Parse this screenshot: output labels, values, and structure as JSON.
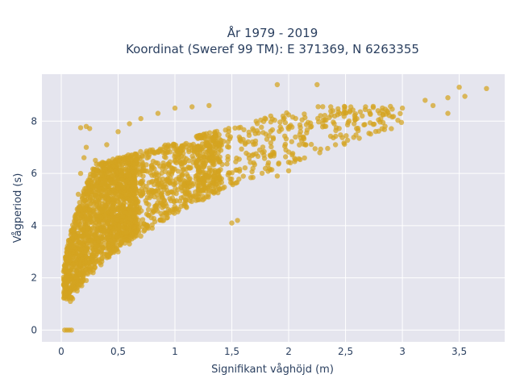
{
  "chart_data": {
    "type": "scatter",
    "title_line1": "År 1979 - 2019",
    "title_line2": "Koordinat (Sweref 99 TM): E 371369, N 6263355",
    "xlabel": "Signifikant våghöjd (m)",
    "ylabel": "Vågperiod (s)",
    "xlim": [
      -0.17,
      3.9
    ],
    "ylim": [
      -0.45,
      9.8
    ],
    "xticks": [
      0,
      0.5,
      1,
      1.5,
      2,
      2.5,
      3,
      3.5
    ],
    "xtick_labels": [
      "0",
      "0,5",
      "1",
      "1,5",
      "2",
      "2,5",
      "3",
      "3,5"
    ],
    "yticks": [
      0,
      2,
      4,
      6,
      8
    ],
    "ytick_labels": [
      "0",
      "2",
      "4",
      "6",
      "8"
    ],
    "grid": true,
    "marker_color": "#d4a420",
    "plot_bg": "#e5e5ee",
    "points": [
      [
        0.03,
        0.0
      ],
      [
        0.05,
        0.0
      ],
      [
        0.07,
        0.0
      ],
      [
        0.09,
        0.0
      ],
      [
        0.03,
        1.3
      ],
      [
        0.05,
        1.6
      ],
      [
        0.07,
        2.0
      ],
      [
        0.09,
        2.4
      ],
      [
        0.1,
        3.0
      ],
      [
        0.12,
        3.6
      ],
      [
        0.14,
        4.4
      ],
      [
        0.15,
        5.2
      ],
      [
        0.17,
        6.0
      ],
      [
        0.2,
        6.6
      ],
      [
        0.22,
        7.0
      ],
      [
        0.08,
        1.1
      ],
      [
        0.1,
        1.2
      ],
      [
        0.14,
        1.5
      ],
      [
        0.18,
        1.7
      ],
      [
        0.22,
        1.9
      ],
      [
        0.28,
        2.2
      ],
      [
        0.35,
        2.5
      ],
      [
        0.42,
        2.8
      ],
      [
        0.5,
        3.0
      ],
      [
        0.6,
        3.3
      ],
      [
        0.7,
        3.6
      ],
      [
        0.8,
        3.9
      ],
      [
        0.9,
        4.2
      ],
      [
        0.3,
        6.5
      ],
      [
        0.4,
        7.1
      ],
      [
        0.5,
        7.6
      ],
      [
        0.6,
        7.9
      ],
      [
        0.7,
        8.1
      ],
      [
        0.85,
        8.3
      ],
      [
        1.0,
        8.5
      ],
      [
        1.15,
        8.55
      ],
      [
        1.3,
        8.6
      ],
      [
        1.0,
        6.5
      ],
      [
        1.2,
        6.9
      ],
      [
        1.4,
        7.1
      ],
      [
        1.6,
        7.3
      ],
      [
        1.8,
        7.5
      ],
      [
        2.0,
        7.7
      ],
      [
        2.2,
        7.8
      ],
      [
        2.4,
        7.9
      ],
      [
        2.6,
        8.1
      ],
      [
        2.8,
        8.3
      ],
      [
        3.0,
        8.5
      ],
      [
        3.2,
        8.8
      ],
      [
        3.4,
        8.9
      ],
      [
        3.5,
        9.3
      ],
      [
        3.55,
        8.95
      ],
      [
        3.74,
        9.25
      ],
      [
        3.27,
        8.6
      ],
      [
        3.4,
        8.3
      ],
      [
        1.9,
        9.4
      ],
      [
        2.25,
        9.4
      ],
      [
        1.55,
        4.2
      ],
      [
        1.5,
        4.1
      ],
      [
        1.9,
        5.9
      ],
      [
        2.0,
        6.1
      ],
      [
        0.17,
        7.75
      ],
      [
        0.22,
        7.8
      ],
      [
        0.25,
        7.72
      ]
    ]
  }
}
